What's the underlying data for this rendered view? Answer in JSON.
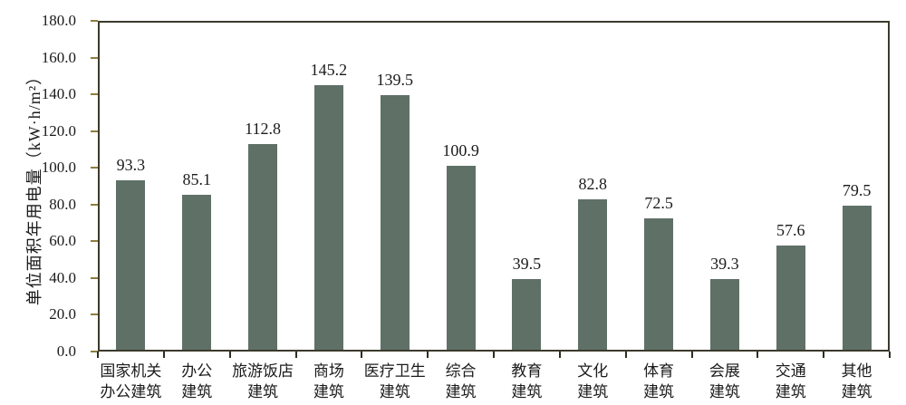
{
  "chart_data": {
    "type": "bar",
    "title": "",
    "xlabel": "",
    "ylabel": "单位面积年用电量（kW·h/m²）",
    "ylim": [
      0,
      180
    ],
    "ytick_step": 20,
    "ytick_labels": [
      "0.0",
      "20.0",
      "40.0",
      "60.0",
      "80.0",
      "100.0",
      "120.0",
      "140.0",
      "160.0",
      "180.0"
    ],
    "grid": false,
    "legend_position": "none",
    "categories": [
      "国家机关\n办公建筑",
      "办公\n建筑",
      "旅游饭店\n建筑",
      "商场\n建筑",
      "医疗卫生\n建筑",
      "综合\n建筑",
      "教育\n建筑",
      "文化\n建筑",
      "体育\n建筑",
      "会展\n建筑",
      "交通\n建筑",
      "其他\n建筑"
    ],
    "values": [
      93.3,
      85.1,
      112.8,
      145.2,
      139.5,
      100.9,
      39.5,
      82.8,
      72.5,
      39.3,
      57.6,
      79.5
    ],
    "value_labels": [
      "93.3",
      "85.1",
      "112.8",
      "145.2",
      "139.5",
      "100.9",
      "39.5",
      "82.8",
      "72.5",
      "39.3",
      "57.6",
      "79.5"
    ],
    "colors": {
      "bar": "#5f7067",
      "axis_border": "#3b3a2c",
      "y_tick_mark": "#8f7d3c",
      "x_tick_mark": "#2e2d20",
      "text": "#1b1b1b",
      "background": "#ffffff"
    }
  }
}
